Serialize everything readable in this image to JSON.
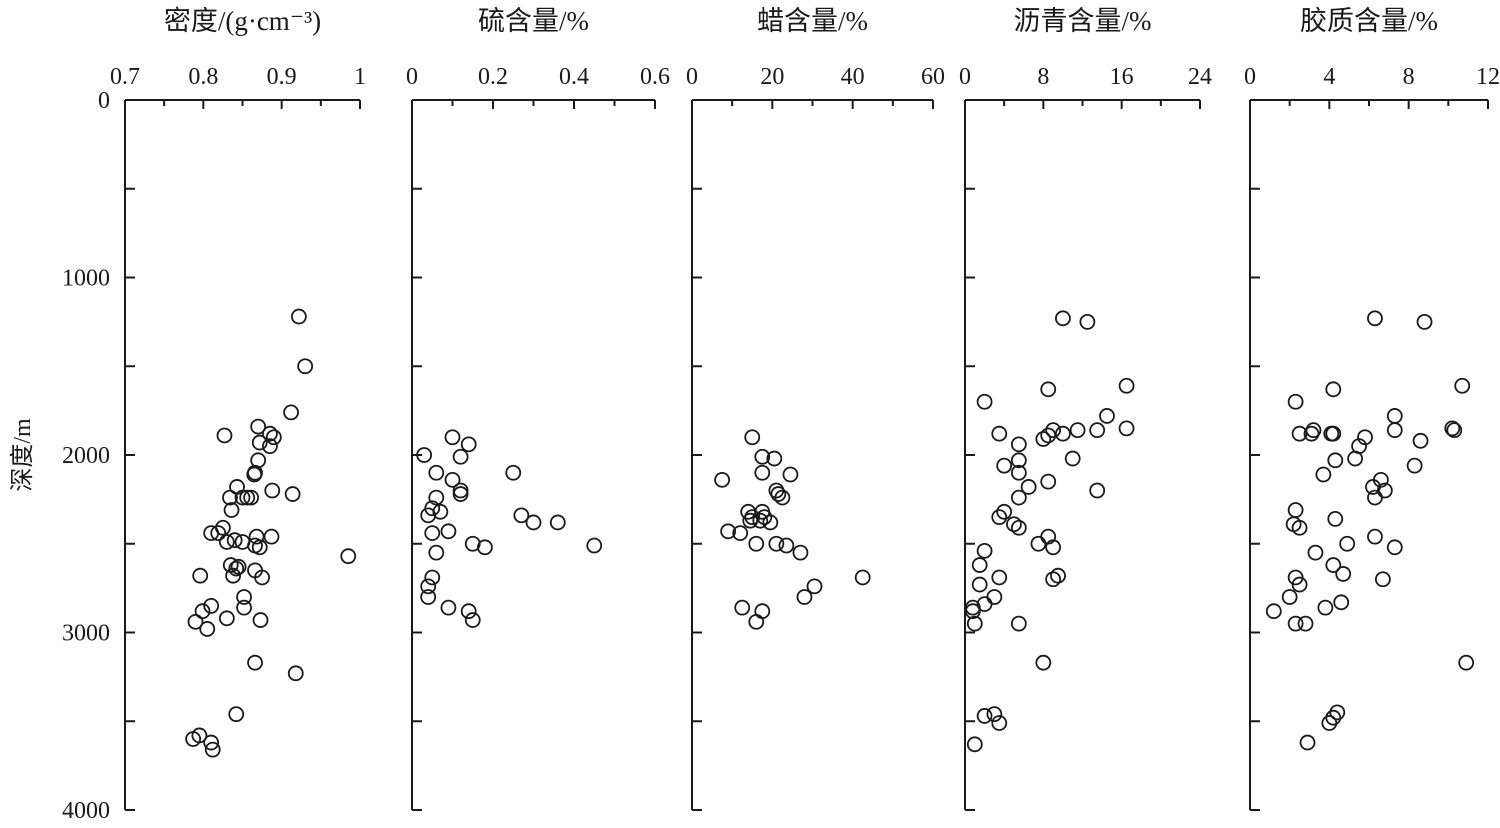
{
  "figure": {
    "y_axis": {
      "label": "深度/m",
      "ticks": [
        0,
        1000,
        2000,
        3000,
        4000
      ],
      "tick_labels": [
        "0",
        "1000",
        "2000",
        "3000",
        "4000"
      ],
      "range": [
        0,
        4000
      ],
      "inverted": true
    }
  },
  "chart_data": [
    {
      "type": "scatter",
      "title": "密度/(g·cm⁻³)",
      "xlim": [
        0.7,
        1.0
      ],
      "x_ticks": [
        0.7,
        0.8,
        0.9,
        1.0
      ],
      "x_tick_labels": [
        "0.7",
        "0.8",
        "0.9",
        "1"
      ],
      "ylim": [
        0,
        4000
      ],
      "points": [
        [
          0.922,
          1220
        ],
        [
          0.93,
          1500
        ],
        [
          0.912,
          1760
        ],
        [
          0.827,
          1890
        ],
        [
          0.87,
          1840
        ],
        [
          0.885,
          1880
        ],
        [
          0.89,
          1900
        ],
        [
          0.872,
          1930
        ],
        [
          0.885,
          1950
        ],
        [
          0.87,
          2030
        ],
        [
          0.866,
          2100
        ],
        [
          0.865,
          2110
        ],
        [
          0.843,
          2180
        ],
        [
          0.888,
          2200
        ],
        [
          0.914,
          2220
        ],
        [
          0.834,
          2240
        ],
        [
          0.85,
          2240
        ],
        [
          0.856,
          2240
        ],
        [
          0.861,
          2240
        ],
        [
          0.836,
          2310
        ],
        [
          0.825,
          2410
        ],
        [
          0.81,
          2440
        ],
        [
          0.819,
          2440
        ],
        [
          0.84,
          2480
        ],
        [
          0.85,
          2490
        ],
        [
          0.83,
          2490
        ],
        [
          0.866,
          2510
        ],
        [
          0.872,
          2520
        ],
        [
          0.887,
          2460
        ],
        [
          0.868,
          2460
        ],
        [
          0.985,
          2570
        ],
        [
          0.835,
          2620
        ],
        [
          0.842,
          2640
        ],
        [
          0.845,
          2630
        ],
        [
          0.866,
          2650
        ],
        [
          0.838,
          2680
        ],
        [
          0.796,
          2680
        ],
        [
          0.875,
          2690
        ],
        [
          0.852,
          2800
        ],
        [
          0.81,
          2850
        ],
        [
          0.852,
          2860
        ],
        [
          0.799,
          2880
        ],
        [
          0.83,
          2920
        ],
        [
          0.873,
          2930
        ],
        [
          0.79,
          2940
        ],
        [
          0.805,
          2980
        ],
        [
          0.866,
          3170
        ],
        [
          0.918,
          3230
        ],
        [
          0.842,
          3460
        ],
        [
          0.795,
          3580
        ],
        [
          0.787,
          3600
        ],
        [
          0.81,
          3620
        ],
        [
          0.812,
          3660
        ]
      ]
    },
    {
      "type": "scatter",
      "title": "硫含量/%",
      "xlim": [
        0,
        0.6
      ],
      "x_ticks": [
        0,
        0.2,
        0.4,
        0.6
      ],
      "x_tick_labels": [
        "0",
        "0.2",
        "0.4",
        "0.6"
      ],
      "ylim": [
        0,
        4000
      ],
      "points": [
        [
          0.1,
          1900
        ],
        [
          0.14,
          1940
        ],
        [
          0.03,
          2000
        ],
        [
          0.12,
          2010
        ],
        [
          0.06,
          2100
        ],
        [
          0.25,
          2100
        ],
        [
          0.1,
          2140
        ],
        [
          0.12,
          2200
        ],
        [
          0.12,
          2220
        ],
        [
          0.06,
          2240
        ],
        [
          0.05,
          2300
        ],
        [
          0.07,
          2320
        ],
        [
          0.04,
          2340
        ],
        [
          0.27,
          2340
        ],
        [
          0.3,
          2380
        ],
        [
          0.36,
          2380
        ],
        [
          0.09,
          2430
        ],
        [
          0.05,
          2440
        ],
        [
          0.15,
          2500
        ],
        [
          0.18,
          2520
        ],
        [
          0.45,
          2510
        ],
        [
          0.06,
          2550
        ],
        [
          0.05,
          2690
        ],
        [
          0.04,
          2740
        ],
        [
          0.04,
          2800
        ],
        [
          0.09,
          2860
        ],
        [
          0.14,
          2880
        ],
        [
          0.15,
          2930
        ]
      ]
    },
    {
      "type": "scatter",
      "title": "蜡含量/%",
      "xlim": [
        0,
        60
      ],
      "x_ticks": [
        0,
        20,
        40,
        60
      ],
      "x_tick_labels": [
        "0",
        "20",
        "40",
        "60"
      ],
      "ylim": [
        0,
        4000
      ],
      "points": [
        [
          15.0,
          1900
        ],
        [
          17.5,
          2010
        ],
        [
          20.5,
          2020
        ],
        [
          17.5,
          2100
        ],
        [
          24.5,
          2110
        ],
        [
          7.5,
          2140
        ],
        [
          21.0,
          2200
        ],
        [
          21.5,
          2220
        ],
        [
          22.5,
          2240
        ],
        [
          14.0,
          2320
        ],
        [
          17.5,
          2320
        ],
        [
          15.0,
          2350
        ],
        [
          18.0,
          2350
        ],
        [
          14.5,
          2370
        ],
        [
          17.0,
          2370
        ],
        [
          19.5,
          2380
        ],
        [
          9.0,
          2430
        ],
        [
          12.0,
          2440
        ],
        [
          16.0,
          2500
        ],
        [
          21.0,
          2500
        ],
        [
          23.5,
          2510
        ],
        [
          27.0,
          2550
        ],
        [
          42.5,
          2690
        ],
        [
          30.5,
          2740
        ],
        [
          28.0,
          2800
        ],
        [
          12.5,
          2860
        ],
        [
          17.5,
          2880
        ],
        [
          16.0,
          2940
        ]
      ]
    },
    {
      "type": "scatter",
      "title": "沥青含量/%",
      "xlim": [
        0,
        24
      ],
      "x_ticks": [
        0,
        8,
        16,
        24
      ],
      "x_tick_labels": [
        "0",
        "8",
        "16",
        "24"
      ],
      "ylim": [
        0,
        4000
      ],
      "points": [
        [
          10.0,
          1230
        ],
        [
          12.5,
          1250
        ],
        [
          16.5,
          1610
        ],
        [
          8.5,
          1630
        ],
        [
          2.0,
          1700
        ],
        [
          14.5,
          1780
        ],
        [
          16.5,
          1850
        ],
        [
          9.0,
          1860
        ],
        [
          11.5,
          1860
        ],
        [
          13.5,
          1860
        ],
        [
          3.5,
          1880
        ],
        [
          10.0,
          1880
        ],
        [
          8.5,
          1890
        ],
        [
          8.0,
          1910
        ],
        [
          5.5,
          1940
        ],
        [
          11.0,
          2020
        ],
        [
          5.5,
          2030
        ],
        [
          4.0,
          2060
        ],
        [
          5.5,
          2100
        ],
        [
          8.5,
          2150
        ],
        [
          6.5,
          2180
        ],
        [
          13.5,
          2200
        ],
        [
          5.5,
          2240
        ],
        [
          4.0,
          2320
        ],
        [
          3.5,
          2350
        ],
        [
          5.0,
          2390
        ],
        [
          5.5,
          2410
        ],
        [
          8.5,
          2460
        ],
        [
          7.5,
          2500
        ],
        [
          9.0,
          2520
        ],
        [
          2.0,
          2540
        ],
        [
          1.5,
          2620
        ],
        [
          3.5,
          2690
        ],
        [
          9.5,
          2680
        ],
        [
          9.0,
          2700
        ],
        [
          1.5,
          2730
        ],
        [
          3.0,
          2800
        ],
        [
          2.0,
          2840
        ],
        [
          0.8,
          2860
        ],
        [
          0.8,
          2880
        ],
        [
          1.0,
          2950
        ],
        [
          5.5,
          2950
        ],
        [
          8.0,
          3170
        ],
        [
          3.0,
          3460
        ],
        [
          2.0,
          3470
        ],
        [
          3.5,
          3510
        ],
        [
          1.0,
          3630
        ]
      ]
    },
    {
      "type": "scatter",
      "title": "胶质含量/%",
      "xlim": [
        0,
        12
      ],
      "x_ticks": [
        0,
        4,
        8,
        12
      ],
      "x_tick_labels": [
        "0",
        "4",
        "8",
        "12"
      ],
      "ylim": [
        0,
        4000
      ],
      "points": [
        [
          6.3,
          1230
        ],
        [
          8.8,
          1250
        ],
        [
          10.7,
          1610
        ],
        [
          4.2,
          1630
        ],
        [
          2.3,
          1700
        ],
        [
          7.3,
          1780
        ],
        [
          10.2,
          1850
        ],
        [
          10.3,
          1860
        ],
        [
          3.2,
          1860
        ],
        [
          7.3,
          1860
        ],
        [
          4.2,
          1880
        ],
        [
          2.5,
          1880
        ],
        [
          3.1,
          1880
        ],
        [
          4.1,
          1880
        ],
        [
          8.6,
          1920
        ],
        [
          5.8,
          1900
        ],
        [
          5.5,
          1950
        ],
        [
          5.3,
          2020
        ],
        [
          4.3,
          2030
        ],
        [
          8.3,
          2060
        ],
        [
          3.7,
          2110
        ],
        [
          6.6,
          2140
        ],
        [
          6.2,
          2180
        ],
        [
          6.8,
          2200
        ],
        [
          6.3,
          2240
        ],
        [
          2.3,
          2310
        ],
        [
          4.3,
          2360
        ],
        [
          2.2,
          2390
        ],
        [
          2.5,
          2410
        ],
        [
          6.3,
          2460
        ],
        [
          4.9,
          2500
        ],
        [
          7.3,
          2520
        ],
        [
          3.3,
          2550
        ],
        [
          4.2,
          2620
        ],
        [
          4.7,
          2670
        ],
        [
          6.7,
          2700
        ],
        [
          2.3,
          2690
        ],
        [
          2.5,
          2730
        ],
        [
          2.0,
          2800
        ],
        [
          4.6,
          2830
        ],
        [
          3.8,
          2860
        ],
        [
          1.2,
          2880
        ],
        [
          2.3,
          2950
        ],
        [
          2.8,
          2950
        ],
        [
          10.9,
          3170
        ],
        [
          4.4,
          3450
        ],
        [
          4.2,
          3480
        ],
        [
          4.0,
          3510
        ],
        [
          2.9,
          3620
        ]
      ]
    }
  ]
}
